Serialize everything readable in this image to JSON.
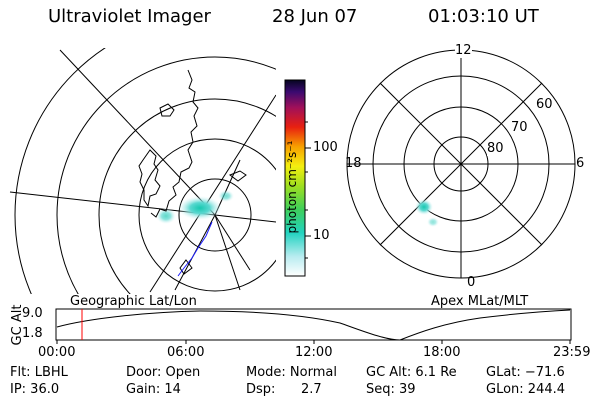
{
  "header": {
    "title": "Ultraviolet Imager",
    "date": "28 Jun 07",
    "time": "01:03:10 UT"
  },
  "colorbar": {
    "unit_label": "photon cm⁻²s⁻¹",
    "ticks": [
      "100",
      "10"
    ]
  },
  "maps": {
    "left_label": "Geographic Lat/Lon",
    "right_label": "Apex MLat/MLT"
  },
  "polar": {
    "mlt_labels": [
      "12",
      "18",
      "6",
      "0"
    ],
    "lat_labels": [
      "60",
      "70",
      "80"
    ]
  },
  "altitude_panel": {
    "ylabel": "GC Alt",
    "y_ticks": [
      "9.0",
      "1.8"
    ],
    "x_ticks": [
      "00:00",
      "06:00",
      "12:00",
      "18:00",
      "23:59"
    ]
  },
  "status": {
    "flt": "Flt: LBHL",
    "ip": "IP: 36.0",
    "door": "Door: Open",
    "gain": "Gain: 14",
    "mode": "Mode: Normal",
    "dsp_label": "Dsp:",
    "dsp_value": "2.7",
    "gc_alt": "GC Alt: 6.1 Re",
    "seq": "Seq: 39",
    "glat": "GLat: −71.6",
    "glon": "GLon: 244.4"
  },
  "colors": {
    "line": "#000000",
    "time_marker": "#ff0000",
    "aurora": "#22d3c0"
  }
}
